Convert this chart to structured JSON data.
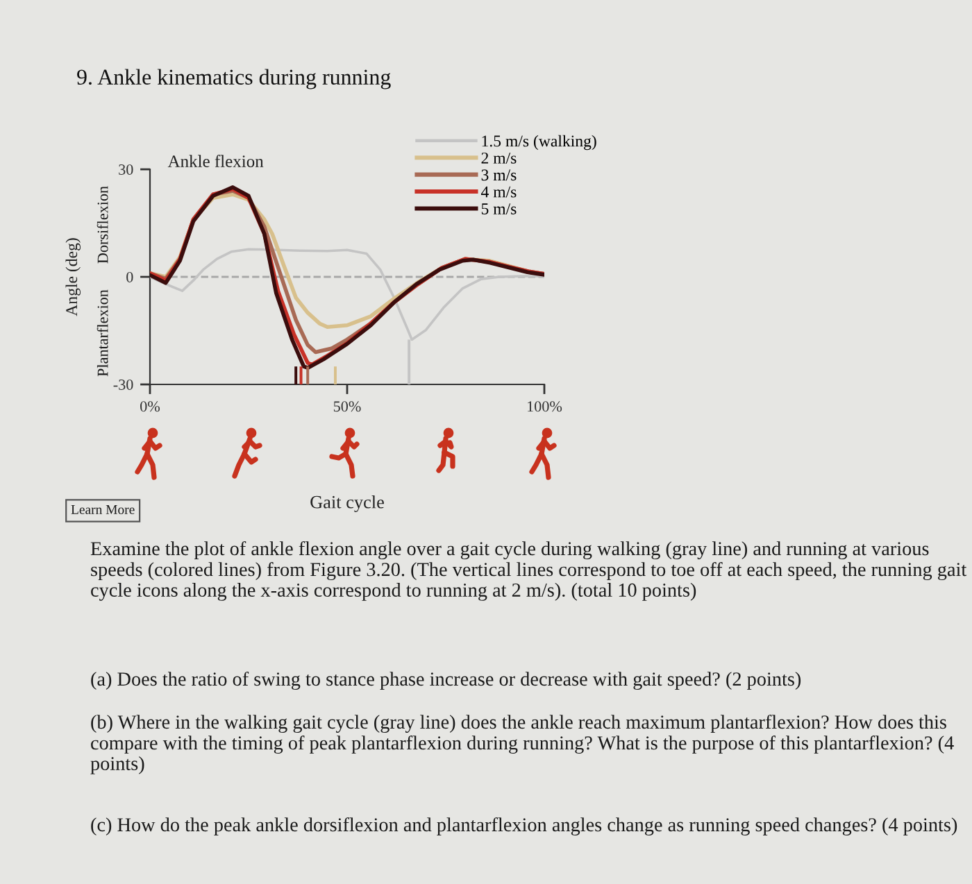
{
  "chart_data": {
    "type": "line",
    "title": "9. Ankle kinematics during running",
    "subtitle": "Ankle flexion",
    "xlabel": "Gait cycle",
    "ylabel": "Angle (deg)",
    "annotations": [
      "Dorsiflexion",
      "Plantarflexion",
      "Learn More",
      "Examine the plot of ankle flexion angle over a gait cycle during walking (gray line) and running at various speeds (colored lines) from Figure 3.20. (The vertical lines correspond to toe off at each speed, the running gait cycle icons along the x-axis correspond to running at 2 m/s). (total 10 points)",
      "(a) Does the ratio of swing to stance phase increase or decrease with gait speed? (2 points)",
      "(b) Where in the walking gait cycle (gray line) does the ankle reach maximum plantarflexion? How does this compare with the timing of peak plantarflexion during running? What is the purpose of this plantarflexion? (4 points)",
      "(c) How do the peak ankle dorsiflexion and plantarflexion angles change as running speed changes? (4 points)"
    ],
    "xlim": [
      0,
      100
    ],
    "ylim": [
      -30,
      30
    ],
    "xticks": [
      {
        "value": 0,
        "label": "0%"
      },
      {
        "value": 50,
        "label": "50%"
      },
      {
        "value": 100,
        "label": "100%"
      }
    ],
    "yticks": [
      30,
      0,
      -30
    ],
    "legend": "top right",
    "line_style": "solid",
    "series": [
      {
        "name": "1.5 m/s (walking)",
        "color": "#c4c4c4",
        "x": [
          0,
          4,
          8.2,
          11,
          13.5,
          17,
          20.6,
          25,
          30,
          38,
          45,
          50,
          54.9,
          58.4,
          61.9,
          65.4,
          66.4,
          70,
          74.6,
          79.3,
          84,
          88.6,
          94,
          100
        ],
        "values": [
          0,
          -2,
          -3.9,
          -1,
          2,
          5,
          7,
          7.7,
          7.6,
          7.3,
          7.2,
          7.5,
          6.5,
          2,
          -5.8,
          -14.8,
          -17.5,
          -14.8,
          -8.4,
          -3.2,
          -0.6,
          0,
          0.2,
          0.2
        ]
      },
      {
        "name": "2 m/s",
        "color": "#d8c08c",
        "x": [
          0,
          4,
          7.6,
          11,
          16,
          21,
          25,
          29,
          31,
          34,
          37,
          40,
          43,
          45,
          50,
          56,
          62,
          68,
          74,
          80,
          86,
          91,
          96,
          100
        ],
        "values": [
          1,
          0,
          5.5,
          16,
          22,
          23,
          21.5,
          16,
          12,
          3,
          -5.8,
          -10,
          -13,
          -14,
          -13.5,
          -11,
          -6,
          -1.5,
          2.5,
          5,
          4.5,
          3,
          1.5,
          0.8
        ]
      },
      {
        "name": "3 m/s",
        "color": "#a86a55",
        "x": [
          0,
          4,
          7.6,
          11,
          16,
          21,
          25,
          29,
          33,
          37,
          40,
          42,
          46,
          50,
          56,
          62,
          68,
          74,
          80,
          86,
          91,
          96,
          100
        ],
        "values": [
          1,
          -0.5,
          5,
          16,
          23,
          24,
          22,
          14,
          1,
          -12,
          -19,
          -21,
          -20,
          -17.5,
          -13,
          -7,
          -2,
          2.5,
          5,
          4.2,
          2.8,
          1.5,
          0.8
        ]
      },
      {
        "name": "4 m/s",
        "color": "#c83228",
        "x": [
          0,
          4,
          7.6,
          11,
          16,
          21,
          25,
          29,
          32.5,
          36.5,
          40,
          41,
          45,
          50,
          56,
          62,
          68,
          74,
          80,
          86,
          91,
          96,
          100
        ],
        "values": [
          1,
          -1,
          5,
          16,
          23,
          24.5,
          22,
          12,
          -4,
          -16,
          -24,
          -24.5,
          -22,
          -18.5,
          -13,
          -7,
          -2,
          2.5,
          5,
          4.2,
          2.8,
          1.5,
          0.8
        ]
      },
      {
        "name": "5 m/s",
        "color": "#3b0d0d",
        "x": [
          0,
          4,
          7.6,
          11,
          16,
          21,
          25,
          29,
          32,
          36,
          39,
          40,
          44,
          50,
          56,
          62,
          67.6,
          73.4,
          79.3,
          82,
          86.3,
          91,
          95.7,
          100
        ],
        "values": [
          0.5,
          -1.7,
          4.5,
          15.5,
          22.6,
          25,
          22.6,
          12,
          -4.5,
          -17.4,
          -25,
          -25.4,
          -23,
          -18.7,
          -13.5,
          -7,
          -2,
          2,
          4.5,
          4.8,
          3.9,
          2.6,
          1.3,
          0.6
        ]
      },
      {
        "type": "bar",
        "x": [
          37,
          38.3,
          40,
          47,
          65.7
        ],
        "base": [
          -30,
          -30,
          -30,
          -30,
          -30
        ],
        "values": [
          5,
          5,
          5,
          5,
          12.5
        ],
        "colors": [
          "#3b0d0d",
          "#c83228",
          "#a86a55",
          "#d8c08c",
          "#c4c4c4"
        ]
      }
    ],
    "ref_lines": [
      {
        "axis": "y",
        "value": 0,
        "label": null,
        "color": "#a8a8a8",
        "line_style": "dashed"
      }
    ]
  }
}
